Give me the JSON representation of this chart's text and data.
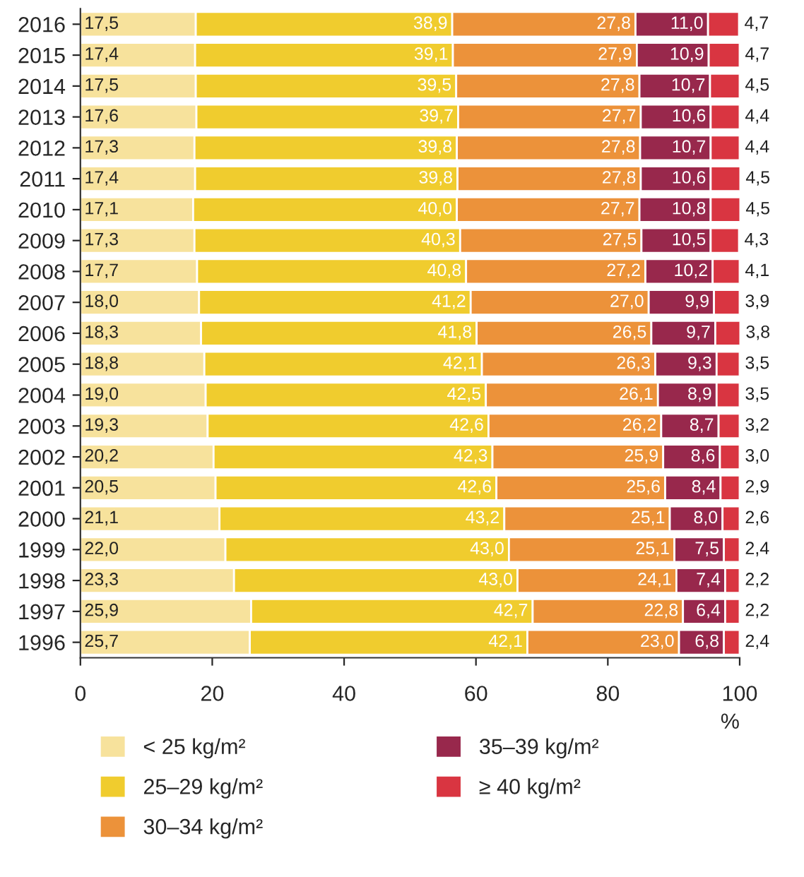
{
  "chart_data": {
    "type": "bar",
    "orientation": "horizontal",
    "stacked": true,
    "xlabel": "%",
    "categories": [
      "2016",
      "2015",
      "2014",
      "2013",
      "2012",
      "2011",
      "2010",
      "2009",
      "2008",
      "2007",
      "2006",
      "2005",
      "2004",
      "2003",
      "2002",
      "2001",
      "2000",
      "1999",
      "1998",
      "1997",
      "1996"
    ],
    "xlim": [
      0,
      100
    ],
    "xticks": [
      0,
      20,
      40,
      60,
      80,
      100
    ],
    "grid": false,
    "legend": "bottom",
    "series": [
      {
        "name": "< 25 kg/m²",
        "color": "#f7e29c",
        "values": [
          17.5,
          17.4,
          17.5,
          17.6,
          17.3,
          17.4,
          17.1,
          17.3,
          17.7,
          18.0,
          18.3,
          18.8,
          19.0,
          19.3,
          20.2,
          20.5,
          21.1,
          22.0,
          23.3,
          25.9,
          25.7
        ],
        "value_labels": [
          "17,5",
          "17,4",
          "17,5",
          "17,6",
          "17,3",
          "17,4",
          "17,1",
          "17,3",
          "17,7",
          "18,0",
          "18,3",
          "18,8",
          "19,0",
          "19,3",
          "20,2",
          "20,5",
          "21,1",
          "22,0",
          "23,3",
          "25,9",
          "25,7"
        ]
      },
      {
        "name": "25–29 kg/m²",
        "color": "#f0cc2e",
        "values": [
          38.9,
          39.1,
          39.5,
          39.7,
          39.8,
          39.8,
          40.0,
          40.3,
          40.8,
          41.2,
          41.8,
          42.1,
          42.5,
          42.6,
          42.3,
          42.6,
          43.2,
          43.0,
          43.0,
          42.7,
          42.1
        ],
        "value_labels": [
          "38,9",
          "39,1",
          "39,5",
          "39,7",
          "39,8",
          "39,8",
          "40,0",
          "40,3",
          "40,8",
          "41,2",
          "41,8",
          "42,1",
          "42,5",
          "42,6",
          "42,3",
          "42,6",
          "43,2",
          "43,0",
          "43,0",
          "42,7",
          "42,1"
        ]
      },
      {
        "name": "30–34 kg/m²",
        "color": "#ec923a",
        "values": [
          27.8,
          27.9,
          27.8,
          27.7,
          27.8,
          27.8,
          27.7,
          27.5,
          27.2,
          27.0,
          26.5,
          26.3,
          26.1,
          26.2,
          25.9,
          25.6,
          25.1,
          25.1,
          24.1,
          22.8,
          23.0
        ],
        "value_labels": [
          "27,8",
          "27,9",
          "27,8",
          "27,7",
          "27,8",
          "27,8",
          "27,7",
          "27,5",
          "27,2",
          "27,0",
          "26,5",
          "26,3",
          "26,1",
          "26,2",
          "25,9",
          "25,6",
          "25,1",
          "25,1",
          "24,1",
          "22,8",
          "23,0"
        ]
      },
      {
        "name": "35–39 kg/m²",
        "color": "#98284c",
        "values": [
          11.0,
          10.9,
          10.7,
          10.6,
          10.7,
          10.6,
          10.8,
          10.5,
          10.2,
          9.9,
          9.7,
          9.3,
          8.9,
          8.7,
          8.6,
          8.4,
          8.0,
          7.5,
          7.4,
          6.4,
          6.8
        ],
        "value_labels": [
          "11,0",
          "10,9",
          "10,7",
          "10,6",
          "10,7",
          "10,6",
          "10,8",
          "10,5",
          "10,2",
          "9,9",
          "9,7",
          "9,3",
          "8,9",
          "8,7",
          "8,6",
          "8,4",
          "8,0",
          "7,5",
          "7,4",
          "6,4",
          "6,8"
        ]
      },
      {
        "name": "≥ 40 kg/m²",
        "color": "#d93541",
        "values": [
          4.7,
          4.7,
          4.5,
          4.4,
          4.4,
          4.5,
          4.5,
          4.3,
          4.1,
          3.9,
          3.8,
          3.5,
          3.5,
          3.2,
          3.0,
          2.9,
          2.6,
          2.4,
          2.2,
          2.2,
          2.4
        ],
        "value_labels": [
          "4,7",
          "4,7",
          "4,5",
          "4,4",
          "4,4",
          "4,5",
          "4,5",
          "4,3",
          "4,1",
          "3,9",
          "3,8",
          "3,5",
          "3,5",
          "3,2",
          "3,0",
          "2,9",
          "2,6",
          "2,4",
          "2,2",
          "2,2",
          "2,4"
        ]
      }
    ]
  }
}
